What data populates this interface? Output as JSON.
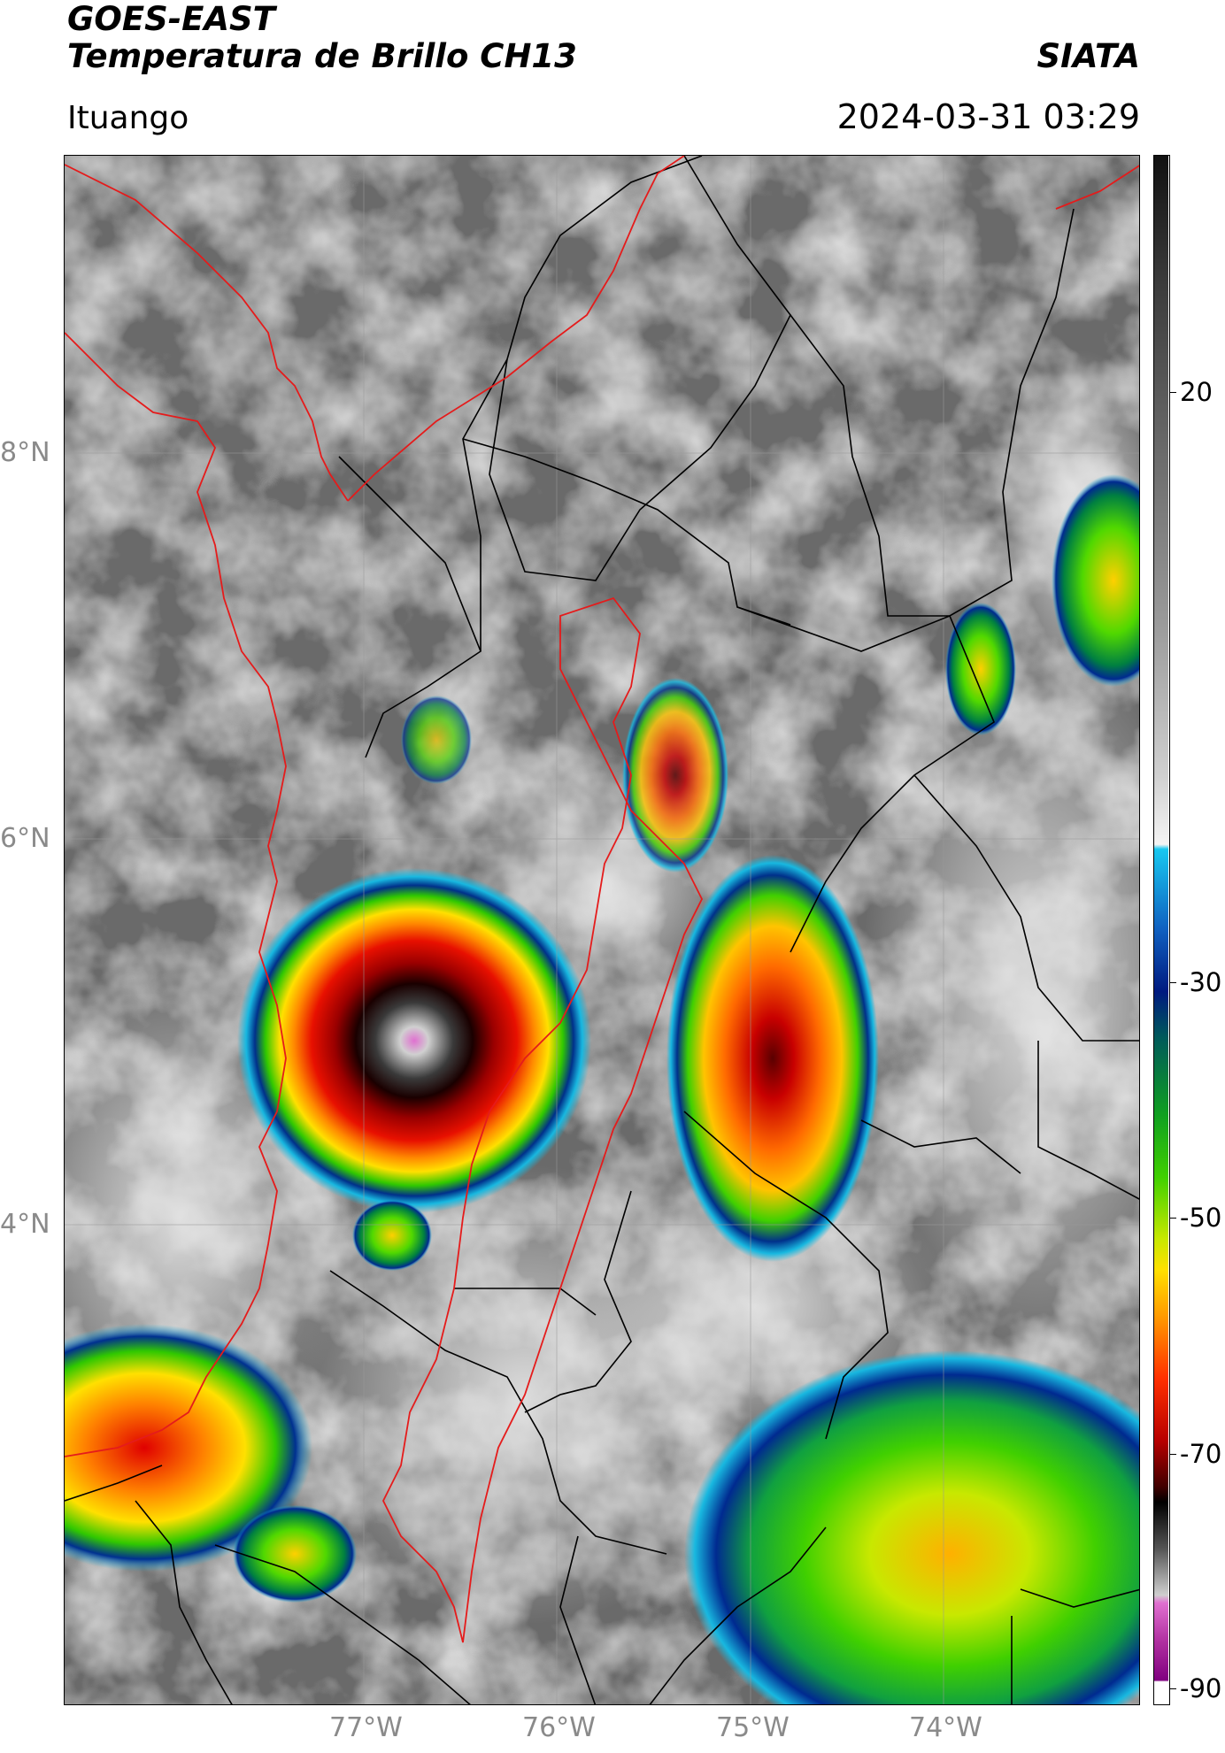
{
  "header": {
    "satellite": "GOES-EAST",
    "product": "Temperatura de Brillo CH13",
    "brand": "SIATA",
    "site": "Ituango",
    "timestamp": "2024-03-31 03:29"
  },
  "map": {
    "lat_labels": [
      "8°N",
      "6°N",
      "4°N"
    ],
    "lon_labels": [
      "77°W",
      "76°W",
      "75°W",
      "74°W"
    ],
    "lat_range": [
      2.4,
      9.45
    ],
    "lon_range": [
      -78.55,
      -72.9
    ],
    "gridlines": true,
    "boundary_colors": {
      "national": "#e51b1b",
      "departmental": "#000000",
      "watershed": "#e51b1b"
    }
  },
  "colorbar": {
    "units": "°C",
    "range": [
      -90,
      40
    ],
    "tick_labels": [
      "20",
      "-30",
      "-50",
      "-70",
      "-90"
    ],
    "tick_values": [
      20,
      -30,
      -50,
      -70,
      -90
    ]
  },
  "colors": {
    "cold_magenta": "#e070d0",
    "black": "#000000",
    "dark_red": "#7a0000",
    "red": "#e10000",
    "orange": "#ff8c00",
    "yellow": "#ffe000",
    "green": "#2ecc00",
    "dark_blue": "#001a80",
    "cyan": "#18c0e8",
    "gray_warm": "#505050"
  }
}
